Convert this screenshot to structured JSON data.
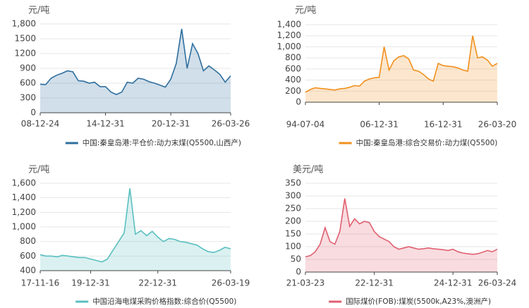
{
  "chart_data": [
    {
      "type": "area",
      "ylabel": "元/吨",
      "ylim": [
        0,
        1800
      ],
      "yticks": [
        0,
        300,
        600,
        900,
        1200,
        1500,
        {
          "value": 1800,
          "label": "1,800"
        }
      ],
      "grid": true,
      "categories": [
        "08-12-24",
        null,
        null,
        null,
        null,
        null,
        null,
        null,
        null,
        null,
        null,
        null,
        "14-12-31",
        null,
        null,
        null,
        null,
        null,
        null,
        null,
        null,
        null,
        null,
        null,
        "20-12-31",
        null,
        null,
        null,
        null,
        null,
        null,
        null,
        null,
        null,
        null,
        "26-03-26"
      ],
      "series": [
        {
          "name": "中国:秦皇岛港:平仓价:动力末煤(Q5500,山西产)",
          "color": "#2e6f9e",
          "values": [
            580,
            570,
            700,
            760,
            800,
            850,
            830,
            650,
            640,
            600,
            620,
            530,
            530,
            420,
            370,
            420,
            620,
            600,
            700,
            680,
            630,
            600,
            560,
            520,
            680,
            1000,
            1700,
            900,
            1400,
            1200,
            850,
            950,
            870,
            780,
            620,
            750
          ]
        }
      ]
    },
    {
      "type": "area",
      "ylabel": "元/吨",
      "ylim": [
        0,
        1400
      ],
      "yticks": [
        0,
        200,
        400,
        600,
        800,
        {
          "value": 1000,
          "label": "1,000"
        },
        {
          "value": 1200,
          "label": "1,200"
        },
        {
          "value": 1400,
          "label": "1,400"
        }
      ],
      "grid": true,
      "categories": [
        "94-07-04",
        null,
        null,
        null,
        null,
        null,
        null,
        null,
        null,
        null,
        null,
        null,
        null,
        null,
        null,
        "06-12-31",
        null,
        null,
        null,
        null,
        null,
        null,
        null,
        null,
        null,
        null,
        null,
        null,
        "16-12-31",
        null,
        null,
        null,
        null,
        null,
        null,
        null,
        null,
        null,
        null,
        "26-03-20"
      ],
      "series": [
        {
          "name": "中国:秦皇岛港:综合交易价:动力煤(Q5500)",
          "color": "#f0901e",
          "values": [
            180,
            230,
            260,
            250,
            240,
            230,
            220,
            240,
            250,
            270,
            300,
            290,
            380,
            420,
            440,
            450,
            1000,
            580,
            750,
            820,
            840,
            780,
            580,
            560,
            500,
            420,
            380,
            700,
            660,
            650,
            640,
            620,
            580,
            560,
            1200,
            800,
            820,
            760,
            650,
            700
          ]
        }
      ]
    },
    {
      "type": "area",
      "ylabel": "元/吨",
      "ylim": [
        400,
        1600
      ],
      "yticks": [
        400,
        600,
        800,
        {
          "value": 1000,
          "label": "1,000"
        },
        {
          "value": 1200,
          "label": "1,200"
        },
        {
          "value": 1400,
          "label": "1,400"
        },
        {
          "value": 1600,
          "label": "1,600"
        }
      ],
      "grid": true,
      "categories": [
        "17-11-16",
        null,
        null,
        null,
        null,
        null,
        null,
        null,
        null,
        "19-12-31",
        null,
        null,
        null,
        null,
        null,
        null,
        null,
        null,
        null,
        null,
        null,
        "22-12-31",
        null,
        null,
        null,
        null,
        null,
        null,
        null,
        null,
        null,
        null,
        null,
        null,
        "26-03-19"
      ],
      "series": [
        {
          "name": "中国沿海电煤采购价格指数:综合价(Q5500)",
          "color": "#5bbfc0",
          "values": [
            620,
            600,
            600,
            590,
            610,
            600,
            590,
            580,
            580,
            560,
            540,
            520,
            560,
            680,
            800,
            920,
            1530,
            900,
            950,
            880,
            940,
            860,
            800,
            840,
            830,
            800,
            790,
            770,
            750,
            700,
            660,
            650,
            680,
            720,
            700
          ]
        }
      ]
    },
    {
      "type": "area",
      "ylabel": "美元/吨",
      "ylim": [
        0,
        350
      ],
      "yticks": [
        0,
        50,
        100,
        150,
        200,
        250,
        300,
        350
      ],
      "grid": true,
      "categories": [
        "21-03-23",
        null,
        null,
        null,
        null,
        null,
        null,
        null,
        null,
        null,
        null,
        null,
        null,
        null,
        "22-12-31",
        null,
        null,
        null,
        null,
        null,
        null,
        null,
        null,
        null,
        null,
        null,
        null,
        null,
        null,
        null,
        "24-12-31",
        null,
        null,
        null,
        null,
        null,
        null,
        null,
        null,
        "26-03-24"
      ],
      "series": [
        {
          "name": "国际煤价(FOB):煤炭(5500k,A23%,澳洲产)",
          "color": "#e06070",
          "values": [
            60,
            65,
            80,
            110,
            175,
            120,
            110,
            160,
            290,
            180,
            210,
            190,
            200,
            195,
            160,
            140,
            130,
            120,
            100,
            90,
            95,
            100,
            95,
            90,
            92,
            95,
            92,
            90,
            88,
            85,
            90,
            80,
            75,
            72,
            70,
            72,
            78,
            85,
            80,
            90
          ]
        }
      ]
    }
  ]
}
